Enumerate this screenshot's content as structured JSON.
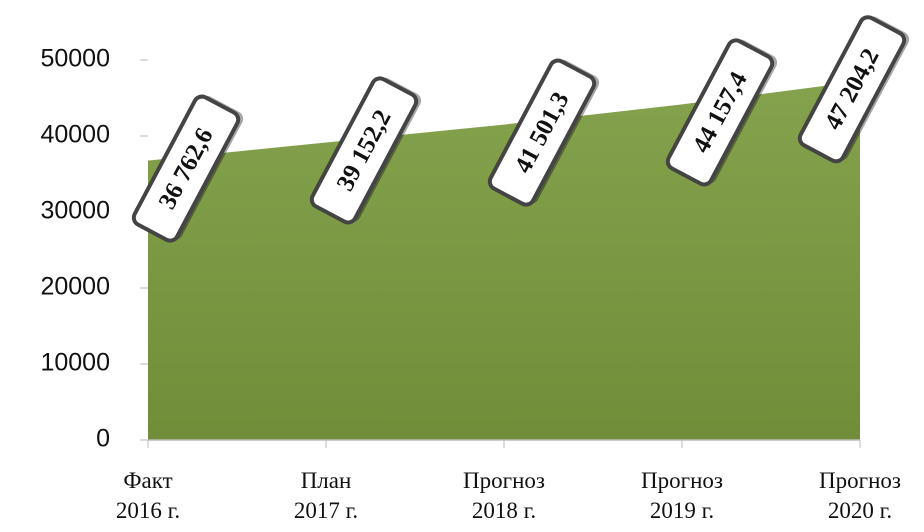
{
  "chart_data": {
    "type": "area",
    "categories": [
      [
        "Факт",
        "2016 г."
      ],
      [
        "План",
        "2017 г."
      ],
      [
        "Прогноз",
        "2018 г."
      ],
      [
        "Прогноз",
        "2019 г."
      ],
      [
        "Прогноз",
        "2020 г."
      ]
    ],
    "values": [
      36762.6,
      39152.2,
      41501.3,
      44157.4,
      47204.2
    ],
    "value_labels": [
      "36 762,6",
      "39 152,2",
      "41 501,3",
      "44 157,4",
      "47 204,2"
    ],
    "color": "#7a9a3e",
    "ylim": [
      0,
      50000
    ],
    "yticks": [
      0,
      10000,
      20000,
      30000,
      40000,
      50000
    ]
  }
}
